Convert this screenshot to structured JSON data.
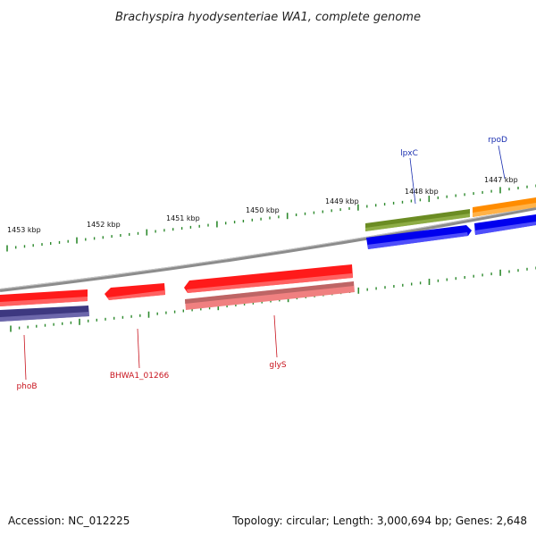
{
  "title": "Brachyspira hyodysenteriae WA1, complete genome",
  "footer": {
    "accession": "Accession: NC_012225",
    "info": "Topology: circular; Length: 3,000,694 bp; Genes: 2,648"
  },
  "scale_labels": [
    "1453 kbp",
    "1452 kbp",
    "1451 kbp",
    "1450 kbp",
    "1449 kbp",
    "1448 kbp",
    "1447 kbp"
  ],
  "gene_labels": {
    "top": [
      "lpxC",
      "rpoD"
    ],
    "bottom": [
      "phoB",
      "BHWA1_01266",
      "glyS"
    ]
  },
  "colors": {
    "backbone": "#8c8c8c",
    "tick": "#2e8a2e",
    "red": "#ff1a1a",
    "pink": "#f08080",
    "navy": "#3d3880",
    "olive": "#6b8c23",
    "blue": "#0000ee",
    "orange": "#ff8c00",
    "label_blue": "#1a2fb0",
    "label_red": "#c8141e"
  }
}
